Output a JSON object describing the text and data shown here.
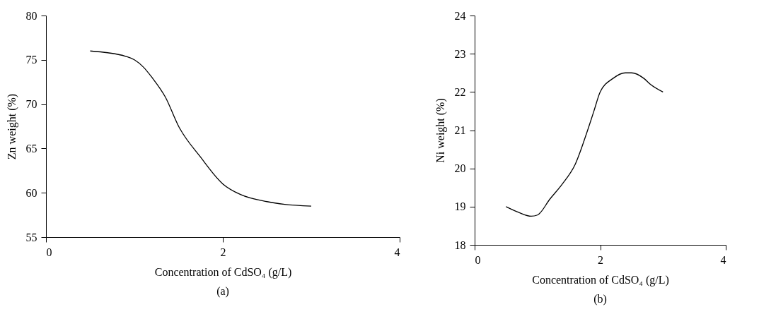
{
  "chart_data": [
    {
      "type": "line",
      "xlabel": "Concentration of CdSO₄ (g/L)",
      "ylabel": "Zn weight (%)",
      "annotations": [
        "(a)"
      ],
      "x": [
        0.5,
        0.7,
        0.9,
        1.0,
        1.1,
        1.2,
        1.35,
        1.5,
        1.75,
        2.0,
        2.2,
        2.5,
        2.7,
        3.0
      ],
      "series": [
        {
          "color": "#000000",
          "values": [
            76,
            75.8,
            75.4,
            75,
            74.2,
            73,
            70.8,
            67.5,
            64,
            61,
            59.8,
            59,
            58.7,
            58.5
          ]
        }
      ],
      "xlim": [
        0,
        4
      ],
      "xticks": [
        0,
        2,
        4
      ],
      "ylim": [
        55,
        80
      ],
      "yticks": [
        55,
        60,
        65,
        70,
        75,
        80
      ],
      "grid": false,
      "marker": "none",
      "line_style": "solid"
    },
    {
      "type": "line",
      "xlabel": "Concentration of CdSO₄ (g/L)",
      "ylabel": "Ni weight (%)",
      "annotations": [
        "(b)"
      ],
      "x": [
        0.5,
        0.7,
        0.9,
        1.0,
        1.2,
        1.4,
        1.6,
        1.8,
        1.9,
        2.0,
        2.2,
        2.4,
        2.5,
        2.7,
        2.8,
        3.0
      ],
      "series": [
        {
          "color": "#000000",
          "values": [
            19,
            18.85,
            18.75,
            18.78,
            19.2,
            19.6,
            20.1,
            21,
            21.5,
            22,
            22.35,
            22.5,
            22.5,
            22.35,
            22.2,
            22
          ]
        }
      ],
      "xlim": [
        0,
        4
      ],
      "xticks": [
        0,
        2,
        4
      ],
      "ylim": [
        18,
        24
      ],
      "yticks": [
        18,
        19,
        20,
        21,
        22,
        23,
        24
      ],
      "grid": false,
      "marker": "none",
      "line_style": "solid"
    }
  ]
}
